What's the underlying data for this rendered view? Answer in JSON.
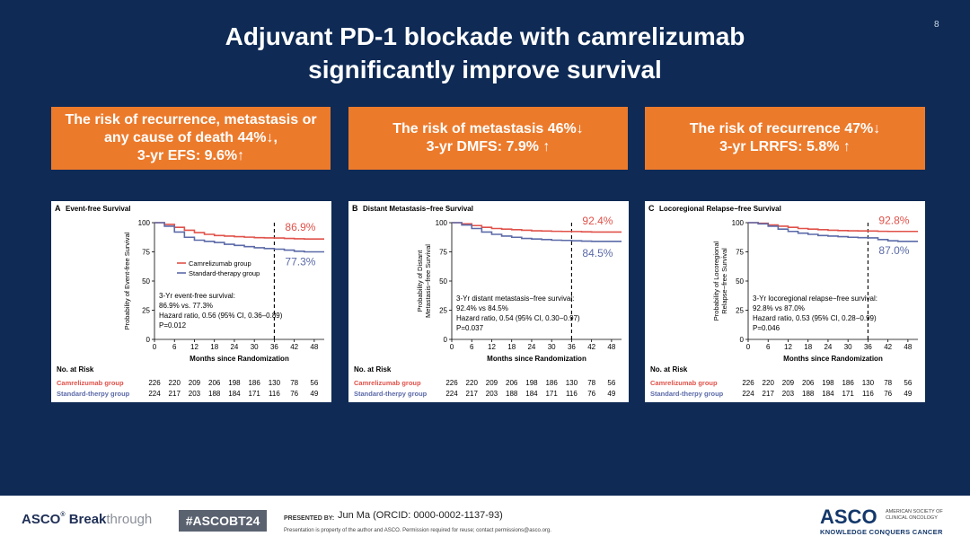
{
  "slide_number": "8",
  "title": {
    "line1": "Adjuvant PD-1 blockade with camrelizumab",
    "line2": "significantly improve survival"
  },
  "boxes": [
    {
      "line1": "The risk of recurrence, metastasis or",
      "line2": "any cause of death 44%↓,",
      "line3": "3-yr EFS: 9.6%↑"
    },
    {
      "line1": "The risk of metastasis 46%↓",
      "line2": "3-yr DMFS:  7.9% ↑"
    },
    {
      "line1": "The risk of recurrence  47%↓",
      "line2": "3-yr LRRFS:  5.8% ↑"
    }
  ],
  "chart_data": [
    {
      "type": "line",
      "panel_letter": "A",
      "title": "Event-free Survival",
      "ylabel": "Probability of Event-free Survival",
      "xlabel": "Months since Randomization",
      "x_ticks": [
        "0",
        "6",
        "12",
        "18",
        "24",
        "30",
        "36",
        "42",
        "48"
      ],
      "y_ticks": [
        "0",
        "25",
        "50",
        "75",
        "100"
      ],
      "xlim": [
        0,
        51
      ],
      "ylim": [
        0,
        100
      ],
      "marker_x": 36,
      "series": [
        {
          "name": "Camrelizumab group",
          "color": "#e0524a",
          "end_label": "86.9%",
          "x": [
            0,
            3,
            6,
            9,
            12,
            15,
            18,
            21,
            24,
            27,
            30,
            33,
            36,
            39,
            42,
            45,
            48,
            51
          ],
          "y": [
            100,
            98.5,
            96,
            93.5,
            91.5,
            90,
            89,
            88.5,
            88,
            87.6,
            87.2,
            87,
            86.9,
            86.5,
            86.2,
            86,
            86,
            86
          ]
        },
        {
          "name": "Standard-therapy group",
          "color": "#5b6aa8",
          "end_label": "77.3%",
          "x": [
            0,
            3,
            6,
            9,
            12,
            15,
            18,
            21,
            24,
            27,
            30,
            33,
            36,
            39,
            42,
            45,
            48,
            51
          ],
          "y": [
            100,
            97,
            92,
            87.5,
            85,
            84,
            83,
            81.5,
            80.5,
            79.5,
            78.5,
            77.8,
            77.3,
            76.5,
            75.5,
            75,
            75,
            75
          ]
        }
      ],
      "legend": [
        "Camrelizumab group",
        "Standard-therapy group"
      ],
      "annotation": [
        "3-Yr event-free survival:",
        "86.9% vs. 77.3%",
        "Hazard ratio, 0.56 (95% CI, 0.36–0.89)",
        "P=0.012"
      ],
      "at_risk_title": "No. at Risk",
      "at_risk": [
        {
          "label": "Camrelizumab group",
          "values": [
            "226",
            "220",
            "209",
            "206",
            "198",
            "186",
            "130",
            "78",
            "56"
          ]
        },
        {
          "label": "Standard-therpy group",
          "values": [
            "224",
            "217",
            "203",
            "188",
            "184",
            "171",
            "116",
            "76",
            "49"
          ]
        }
      ]
    },
    {
      "type": "line",
      "panel_letter": "B",
      "title": "Distant Metastasis−free Survival",
      "ylabel": "Probability of Distant Metastasis−free Survival",
      "xlabel": "Months since Randomization",
      "x_ticks": [
        "0",
        "6",
        "12",
        "18",
        "24",
        "30",
        "36",
        "42",
        "48"
      ],
      "y_ticks": [
        "0",
        "25",
        "50",
        "75",
        "100"
      ],
      "xlim": [
        0,
        51
      ],
      "ylim": [
        0,
        100
      ],
      "marker_x": 36,
      "series": [
        {
          "name": "Camrelizumab group",
          "color": "#e0524a",
          "end_label": "92.4%",
          "x": [
            0,
            3,
            6,
            9,
            12,
            15,
            18,
            21,
            24,
            27,
            30,
            33,
            36,
            39,
            42,
            45,
            48,
            51
          ],
          "y": [
            100,
            99,
            97.5,
            96,
            95,
            94.5,
            94,
            93.5,
            93,
            92.8,
            92.6,
            92.5,
            92.4,
            92.2,
            92,
            92,
            92,
            92
          ]
        },
        {
          "name": "Standard-therapy group",
          "color": "#5b6aa8",
          "end_label": "84.5%",
          "x": [
            0,
            3,
            6,
            9,
            12,
            15,
            18,
            21,
            24,
            27,
            30,
            33,
            36,
            39,
            42,
            45,
            48,
            51
          ],
          "y": [
            100,
            98,
            95,
            92,
            90,
            88.5,
            87.5,
            86.5,
            86,
            85.5,
            85,
            84.8,
            84.5,
            84.2,
            84,
            84,
            84,
            84
          ]
        }
      ],
      "legend": [],
      "annotation": [
        "3-Yr distant metastasis−free survival:",
        "92.4% vs 84.5%",
        "Hazard ratio, 0.54 (95% CI, 0.30−0.97)",
        "P=0.037"
      ],
      "at_risk_title": "No. at Risk",
      "at_risk": [
        {
          "label": "Camrelizumab group",
          "values": [
            "226",
            "220",
            "209",
            "206",
            "198",
            "186",
            "130",
            "78",
            "56"
          ]
        },
        {
          "label": "Standard-therpy group",
          "values": [
            "224",
            "217",
            "203",
            "188",
            "184",
            "171",
            "116",
            "76",
            "49"
          ]
        }
      ]
    },
    {
      "type": "line",
      "panel_letter": "C",
      "title": "Locoregional Relapse−free Survival",
      "ylabel": "Probability of Locoregional Relapse−free Survival",
      "xlabel": "Months since Randomization",
      "x_ticks": [
        "0",
        "6",
        "12",
        "18",
        "24",
        "30",
        "36",
        "42",
        "48"
      ],
      "y_ticks": [
        "0",
        "25",
        "50",
        "75",
        "100"
      ],
      "xlim": [
        0,
        51
      ],
      "ylim": [
        0,
        100
      ],
      "marker_x": 36,
      "series": [
        {
          "name": "Camrelizumab group",
          "color": "#e0524a",
          "end_label": "92.8%",
          "x": [
            0,
            3,
            6,
            9,
            12,
            15,
            18,
            21,
            24,
            27,
            30,
            33,
            36,
            39,
            42,
            45,
            48,
            51
          ],
          "y": [
            100,
            99.5,
            98,
            97,
            96,
            95,
            94.5,
            94,
            93.5,
            93.2,
            93,
            92.9,
            92.8,
            92.6,
            92.5,
            92.5,
            92.5,
            92.5
          ]
        },
        {
          "name": "Standard-therapy group",
          "color": "#5b6aa8",
          "end_label": "87.0%",
          "x": [
            0,
            3,
            6,
            9,
            12,
            15,
            18,
            21,
            24,
            27,
            30,
            33,
            36,
            39,
            42,
            45,
            48,
            51
          ],
          "y": [
            100,
            99,
            97,
            94.5,
            92.5,
            91,
            90,
            89,
            88.5,
            88,
            87.5,
            87.2,
            87,
            85.5,
            84.5,
            84,
            84,
            84
          ]
        }
      ],
      "legend": [],
      "annotation": [
        "3-Yr locoregional relapse−free survival:",
        "92.8% vs 87.0%",
        "Hazard ratio, 0.53 (95% CI, 0.28−0.99)",
        "P=0.046"
      ],
      "at_risk_title": "No. at Risk",
      "at_risk": [
        {
          "label": "Camrelizumab group",
          "values": [
            "226",
            "220",
            "209",
            "206",
            "198",
            "186",
            "130",
            "78",
            "56"
          ]
        },
        {
          "label": "Standard-therpy group",
          "values": [
            "224",
            "217",
            "203",
            "188",
            "184",
            "171",
            "116",
            "76",
            "49"
          ]
        }
      ]
    }
  ],
  "footer": {
    "brand_main": "ASCO",
    "brand_word1": "Break",
    "brand_word2": "through",
    "hashtag": "#ASCOBT24",
    "presented_by": "PRESENTED BY:",
    "presenter": "Jun  Ma (ORCID: 0000-0002-1137-93)",
    "notice": "Presentation is property of the author and ASCO. Permission required for reuse; contact permissions@asco.org.",
    "asco_logo": "ASCO",
    "asco_sub1": "AMERICAN SOCIETY OF",
    "asco_sub2": "CLINICAL ONCOLOGY",
    "asco_tagline": "KNOWLEDGE CONQUERS CANCER"
  }
}
